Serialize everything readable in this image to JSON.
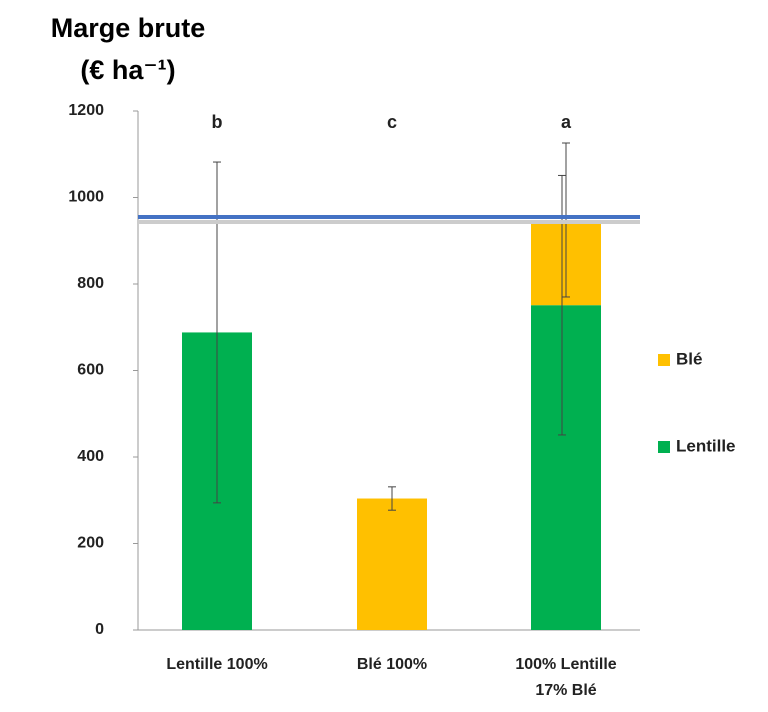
{
  "chart_data": {
    "type": "bar",
    "stacked": true,
    "title": "Marge brute",
    "y_label": "(€ ha⁻¹)",
    "categories": [
      "Lentille 100%",
      "Blé 100%",
      "100% Lentille\n17% Blé"
    ],
    "series": [
      {
        "name": "Lentille",
        "color": "#00b050",
        "values": [
          688,
          null,
          751
        ],
        "errors": [
          394,
          null,
          300
        ]
      },
      {
        "name": "Blé",
        "color": "#ffc000",
        "values": [
          null,
          304,
          197
        ],
        "errors": [
          null,
          27,
          178
        ]
      }
    ],
    "annotations": [
      "b",
      "c",
      "a"
    ],
    "reference_line": {
      "value": 955,
      "color": "#4472c4"
    },
    "ylim": [
      0,
      1200
    ],
    "yticks": [
      0,
      200,
      400,
      600,
      800,
      1000,
      1200
    ],
    "legend": "right"
  }
}
